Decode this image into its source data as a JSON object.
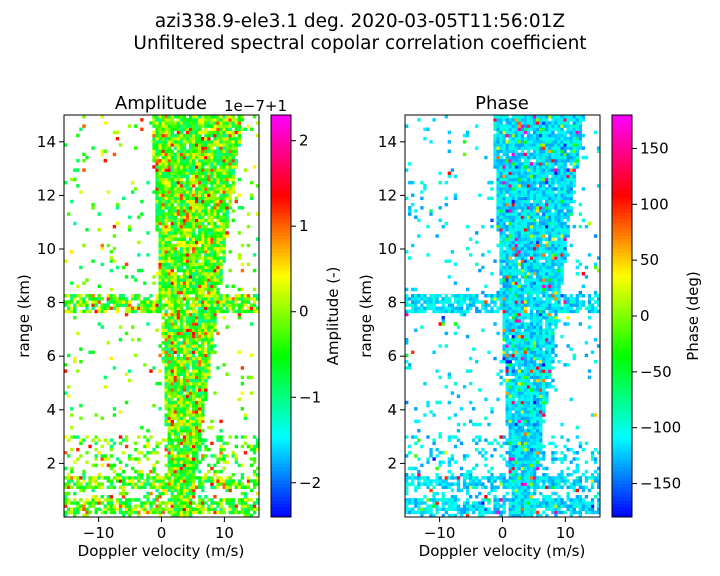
{
  "figure": {
    "title_line1": "azi338.9-ele3.1 deg. 2020-03-05T11:56:01Z",
    "title_line2": "Unfiltered spectral copolar correlation coefficient"
  },
  "chart_data": [
    {
      "type": "heatmap",
      "title": "Amplitude",
      "xlabel": "Doppler velocity (m/s)",
      "ylabel": "range (km)",
      "xlim": [
        -15.5,
        15.5
      ],
      "ylim": [
        0,
        15
      ],
      "xticks": [
        -10,
        0,
        10
      ],
      "yticks": [
        2,
        4,
        6,
        8,
        10,
        12,
        14
      ],
      "colorbar": {
        "label": "Amplitude (-)",
        "range": [
          -2.4,
          2.3
        ],
        "ticks": [
          -2,
          -1,
          0,
          1,
          2
        ],
        "offset_text": "1e−7+1",
        "colormap": "gist_rainbow"
      },
      "note_values": "colour = amplitude offset from 1 in units of 1e-7; main signal band centred near +5 m/s widening with range"
    },
    {
      "type": "heatmap",
      "title": "Phase",
      "xlabel": "Doppler velocity (m/s)",
      "ylabel": "range (km)",
      "xlim": [
        -15.5,
        15.5
      ],
      "ylim": [
        0,
        15
      ],
      "xticks": [
        -10,
        0,
        10
      ],
      "yticks": [
        2,
        4,
        6,
        8,
        10,
        12,
        14
      ],
      "colorbar": {
        "label": "Phase (deg)",
        "range": [
          -180,
          180
        ],
        "ticks": [
          -150,
          -100,
          -50,
          0,
          50,
          100,
          150
        ],
        "colormap": "gist_rainbow"
      }
    }
  ]
}
